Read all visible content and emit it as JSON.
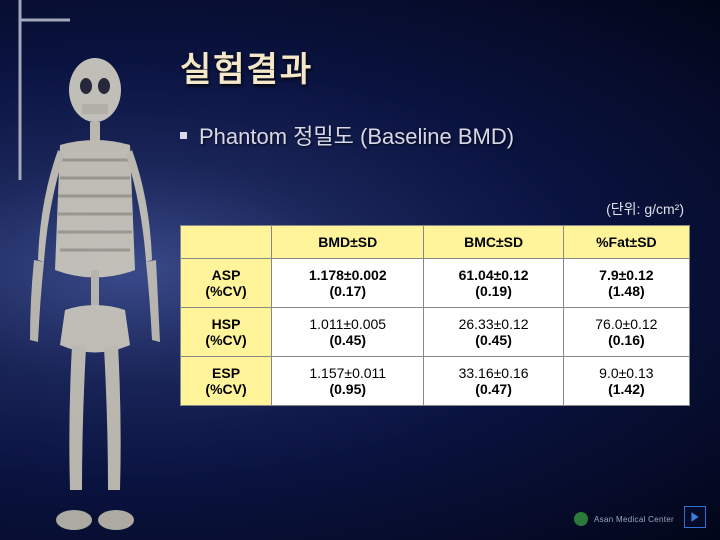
{
  "title": "실험결과",
  "subtitle": "Phantom 정밀도 (Baseline BMD)",
  "unit_label": "(단위: g/cm²)",
  "table": {
    "columns": [
      "",
      "BMD±SD",
      "BMC±SD",
      "%Fat±SD"
    ],
    "rows": [
      {
        "label": "ASP\n(%CV)",
        "cells": [
          "1.178±0.002\n(0.17)",
          "61.04±0.12\n(0.19)",
          "7.9±0.12\n(1.48)"
        ]
      },
      {
        "label": "HSP\n(%CV)",
        "cells": [
          "1.011±0.005\n(0.45)",
          "26.33±0.12\n(0.45)",
          "76.0±0.12\n(0.16)"
        ]
      },
      {
        "label": "ESP\n(%CV)",
        "cells": [
          "1.157±0.011\n(0.95)",
          "33.16±0.16\n(0.47)",
          "9.0±0.13\n(1.42)"
        ]
      }
    ],
    "header_bg": "#fff49a",
    "cell_bg": "#ffffff",
    "border_color": "#888888",
    "font_size": 14
  },
  "colors": {
    "title": "#f5e8c8",
    "subtitle": "#d8d8e8",
    "bg_inner": "#3a4a8a",
    "bg_outer": "#020619"
  },
  "logo_text": "Asan Medical Center"
}
